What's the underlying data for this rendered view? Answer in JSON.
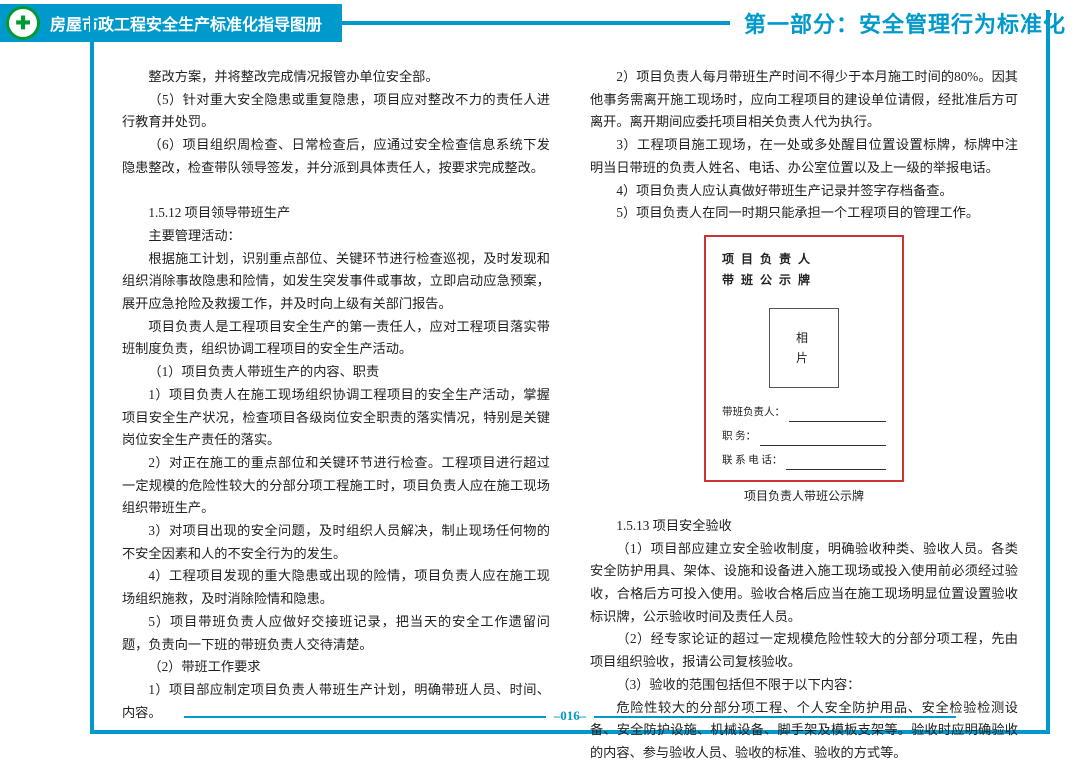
{
  "header": {
    "booklet_title": "房屋市政工程安全生产标准化指导图册",
    "section_title": "第一部分：安全管理行为标准化",
    "logo_glyph": "✚"
  },
  "left_column": [
    "整改方案，并将整改完成情况报管办单位安全部。",
    "（5）针对重大安全隐患或重复隐患，项目应对整改不力的责任人进行教育并处罚。",
    "（6）项目组织周检查、日常检查后，应通过安全检查信息系统下发隐患整改，检查带队领导签发，并分派到具体责任人，按要求完成整改。",
    "",
    "1.5.12 项目领导带班生产",
    "主要管理活动：",
    "根据施工计划，识别重点部位、关键环节进行检查巡视，及时发现和组织消除事故隐患和险情，如发生突发事件或事故，立即启动应急预案，展开应急抢险及救援工作，并及时向上级有关部门报告。",
    "项目负责人是工程项目安全生产的第一责任人，应对工程项目落实带班制度负责，组织协调工程项目的安全生产活动。",
    "（1）项目负责人带班生产的内容、职责",
    "1）项目负责人在施工现场组织协调工程项目的安全生产活动，掌握项目安全生产状况，检查项目各级岗位安全职责的落实情况，特别是关键岗位安全生产责任的落实。",
    "2）对正在施工的重点部位和关键环节进行检查。工程项目进行超过一定规模的危险性较大的分部分项工程施工时，项目负责人应在施工现场组织带班生产。",
    "3）对项目出现的安全问题，及时组织人员解决，制止现场任何物的不安全因素和人的不安全行为的发生。",
    "4）工程项目发现的重大隐患或出现的险情，项目负责人应在施工现场组织施救，及时消除险情和隐患。",
    "5）项目带班负责人应做好交接班记录，把当天的安全工作遗留问题，负责向一下班的带班负责人交待清楚。",
    "（2）带班工作要求",
    "1）项目部应制定项目负责人带班生产计划，明确带班人员、时间、内容。"
  ],
  "right_column_top": [
    "2）项目负责人每月带班生产时间不得少于本月施工时间的80%。因其他事务需离开施工现场时，应向工程项目的建设单位请假，经批准后方可离开。离开期间应委托项目相关负责人代为执行。",
    "3）工程项目施工现场，在一处或多处醒目位置设置标牌，标牌中注明当日带班的负责人姓名、电话、办公室位置以及上一级的举报电话。",
    "4）项目负责人应认真做好带班生产记录并签字存档备查。",
    "5）项目负责人在同一时期只能承担一个工程项目的管理工作。"
  ],
  "board": {
    "line1": "项 目 负 责 人",
    "line2": "带 班 公 示 牌",
    "photo1": "相",
    "photo2": "片",
    "field1": "带班负责人：",
    "field2": "职    务：",
    "field3": "联 系 电 话：",
    "caption": "项目负责人带班公示牌"
  },
  "right_column_bottom": [
    "1.5.13 项目安全验收",
    "（1）项目部应建立安全验收制度，明确验收种类、验收人员。各类安全防护用具、架体、设施和设备进入施工现场或投入使用前必须经过验收，合格后方可投入使用。验收合格后应当在施工现场明显位置设置验收标识牌，公示验收时间及责任人员。",
    "（2）经专家论证的超过一定规模危险性较大的分部分项工程，先由项目组织验收，报请公司复核验收。",
    "（3）验收的范围包括但不限于以下内容：",
    "危险性较大的分部分项工程、个人安全防护用品、安全检验检测设备、安全防护设施、机械设备、脚手架及模板支架等。验收时应明确验收的内容、参与验收人员、验收的标准、验收的方式等。"
  ],
  "page_number": "–016–",
  "colors": {
    "accent": "#0099cc",
    "board_border": "#cc3333"
  }
}
